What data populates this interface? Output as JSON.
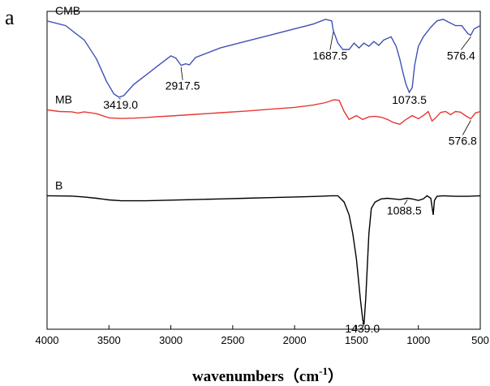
{
  "panel_label": "a",
  "chart_data": {
    "type": "line",
    "title": "",
    "xlabel": "wavenumbers（cm",
    "xlabel_sup": "-1",
    "xlabel_close": "）",
    "ylabel": "",
    "xlim": [
      4000,
      500
    ],
    "x_reversed": true,
    "xticks": [
      4000,
      3500,
      3000,
      2500,
      2000,
      1500,
      1000,
      500
    ],
    "yticks_shown": false,
    "grid": false,
    "legend": "none",
    "series": [
      {
        "name": "CMB",
        "color": "#3f51b5",
        "points": [
          [
            4000,
            0.97
          ],
          [
            3850,
            0.955
          ],
          [
            3700,
            0.91
          ],
          [
            3600,
            0.85
          ],
          [
            3520,
            0.78
          ],
          [
            3460,
            0.74
          ],
          [
            3419,
            0.73
          ],
          [
            3380,
            0.735
          ],
          [
            3300,
            0.77
          ],
          [
            3200,
            0.8
          ],
          [
            3100,
            0.83
          ],
          [
            3000,
            0.86
          ],
          [
            2960,
            0.853
          ],
          [
            2917.5,
            0.83
          ],
          [
            2880,
            0.835
          ],
          [
            2850,
            0.832
          ],
          [
            2800,
            0.855
          ],
          [
            2600,
            0.885
          ],
          [
            2400,
            0.905
          ],
          [
            2200,
            0.925
          ],
          [
            2000,
            0.945
          ],
          [
            1850,
            0.96
          ],
          [
            1750,
            0.975
          ],
          [
            1700,
            0.97
          ],
          [
            1687.5,
            0.94
          ],
          [
            1650,
            0.9
          ],
          [
            1610,
            0.88
          ],
          [
            1560,
            0.88
          ],
          [
            1520,
            0.9
          ],
          [
            1480,
            0.885
          ],
          [
            1440,
            0.9
          ],
          [
            1400,
            0.89
          ],
          [
            1360,
            0.905
          ],
          [
            1320,
            0.893
          ],
          [
            1280,
            0.91
          ],
          [
            1220,
            0.92
          ],
          [
            1180,
            0.89
          ],
          [
            1150,
            0.85
          ],
          [
            1120,
            0.8
          ],
          [
            1100,
            0.77
          ],
          [
            1073.5,
            0.745
          ],
          [
            1050,
            0.76
          ],
          [
            1030,
            0.83
          ],
          [
            1000,
            0.89
          ],
          [
            960,
            0.92
          ],
          [
            900,
            0.95
          ],
          [
            850,
            0.97
          ],
          [
            800,
            0.975
          ],
          [
            750,
            0.965
          ],
          [
            700,
            0.955
          ],
          [
            650,
            0.955
          ],
          [
            600,
            0.93
          ],
          [
            576.4,
            0.925
          ],
          [
            550,
            0.945
          ],
          [
            500,
            0.955
          ]
        ]
      },
      {
        "name": "MB",
        "color": "#e53935",
        "points": [
          [
            4000,
            0.69
          ],
          [
            3900,
            0.685
          ],
          [
            3800,
            0.684
          ],
          [
            3750,
            0.68
          ],
          [
            3700,
            0.684
          ],
          [
            3600,
            0.678
          ],
          [
            3500,
            0.665
          ],
          [
            3450,
            0.664
          ],
          [
            3400,
            0.663
          ],
          [
            3300,
            0.664
          ],
          [
            3200,
            0.666
          ],
          [
            3100,
            0.669
          ],
          [
            3000,
            0.671
          ],
          [
            2800,
            0.676
          ],
          [
            2600,
            0.681
          ],
          [
            2400,
            0.686
          ],
          [
            2200,
            0.692
          ],
          [
            2000,
            0.698
          ],
          [
            1850,
            0.705
          ],
          [
            1750,
            0.713
          ],
          [
            1680,
            0.722
          ],
          [
            1640,
            0.72
          ],
          [
            1600,
            0.685
          ],
          [
            1560,
            0.66
          ],
          [
            1500,
            0.672
          ],
          [
            1450,
            0.66
          ],
          [
            1400,
            0.668
          ],
          [
            1350,
            0.67
          ],
          [
            1300,
            0.667
          ],
          [
            1250,
            0.66
          ],
          [
            1200,
            0.65
          ],
          [
            1150,
            0.645
          ],
          [
            1100,
            0.66
          ],
          [
            1050,
            0.672
          ],
          [
            1000,
            0.662
          ],
          [
            950,
            0.675
          ],
          [
            920,
            0.685
          ],
          [
            890,
            0.655
          ],
          [
            860,
            0.665
          ],
          [
            820,
            0.682
          ],
          [
            780,
            0.685
          ],
          [
            740,
            0.675
          ],
          [
            700,
            0.685
          ],
          [
            660,
            0.683
          ],
          [
            620,
            0.672
          ],
          [
            576.8,
            0.662
          ],
          [
            540,
            0.68
          ],
          [
            500,
            0.685
          ]
        ]
      },
      {
        "name": "B",
        "color": "#000000",
        "points": [
          [
            4000,
            0.42
          ],
          [
            3800,
            0.419
          ],
          [
            3700,
            0.416
          ],
          [
            3600,
            0.412
          ],
          [
            3500,
            0.407
          ],
          [
            3400,
            0.404
          ],
          [
            3200,
            0.404
          ],
          [
            3000,
            0.406
          ],
          [
            2800,
            0.408
          ],
          [
            2600,
            0.41
          ],
          [
            2400,
            0.412
          ],
          [
            2200,
            0.414
          ],
          [
            2000,
            0.416
          ],
          [
            1800,
            0.418
          ],
          [
            1700,
            0.42
          ],
          [
            1650,
            0.42
          ],
          [
            1600,
            0.4
          ],
          [
            1560,
            0.36
          ],
          [
            1530,
            0.3
          ],
          [
            1500,
            0.22
          ],
          [
            1470,
            0.1
          ],
          [
            1450,
            0.03
          ],
          [
            1439,
            0.015
          ],
          [
            1425,
            0.1
          ],
          [
            1400,
            0.3
          ],
          [
            1380,
            0.38
          ],
          [
            1350,
            0.4
          ],
          [
            1300,
            0.41
          ],
          [
            1250,
            0.412
          ],
          [
            1200,
            0.41
          ],
          [
            1150,
            0.408
          ],
          [
            1088.5,
            0.412
          ],
          [
            1050,
            0.41
          ],
          [
            1000,
            0.405
          ],
          [
            960,
            0.41
          ],
          [
            930,
            0.42
          ],
          [
            900,
            0.412
          ],
          [
            880,
            0.36
          ],
          [
            870,
            0.405
          ],
          [
            850,
            0.418
          ],
          [
            800,
            0.42
          ],
          [
            700,
            0.418
          ],
          [
            600,
            0.418
          ],
          [
            500,
            0.42
          ]
        ]
      }
    ],
    "annotations": [
      {
        "text": "3419.0",
        "x": 3419,
        "series": "CMB"
      },
      {
        "text": "2917.5",
        "x": 2917.5,
        "series": "CMB"
      },
      {
        "text": "1687.5",
        "x": 1687.5,
        "series": "CMB"
      },
      {
        "text": "1073.5",
        "x": 1073.5,
        "series": "CMB"
      },
      {
        "text": "576.4",
        "x": 576.4,
        "series": "CMB"
      },
      {
        "text": "576.8",
        "x": 576.8,
        "series": "MB"
      },
      {
        "text": "1439.0",
        "x": 1439,
        "series": "B"
      },
      {
        "text": "1088.5",
        "x": 1088.5,
        "series": "B"
      }
    ]
  }
}
